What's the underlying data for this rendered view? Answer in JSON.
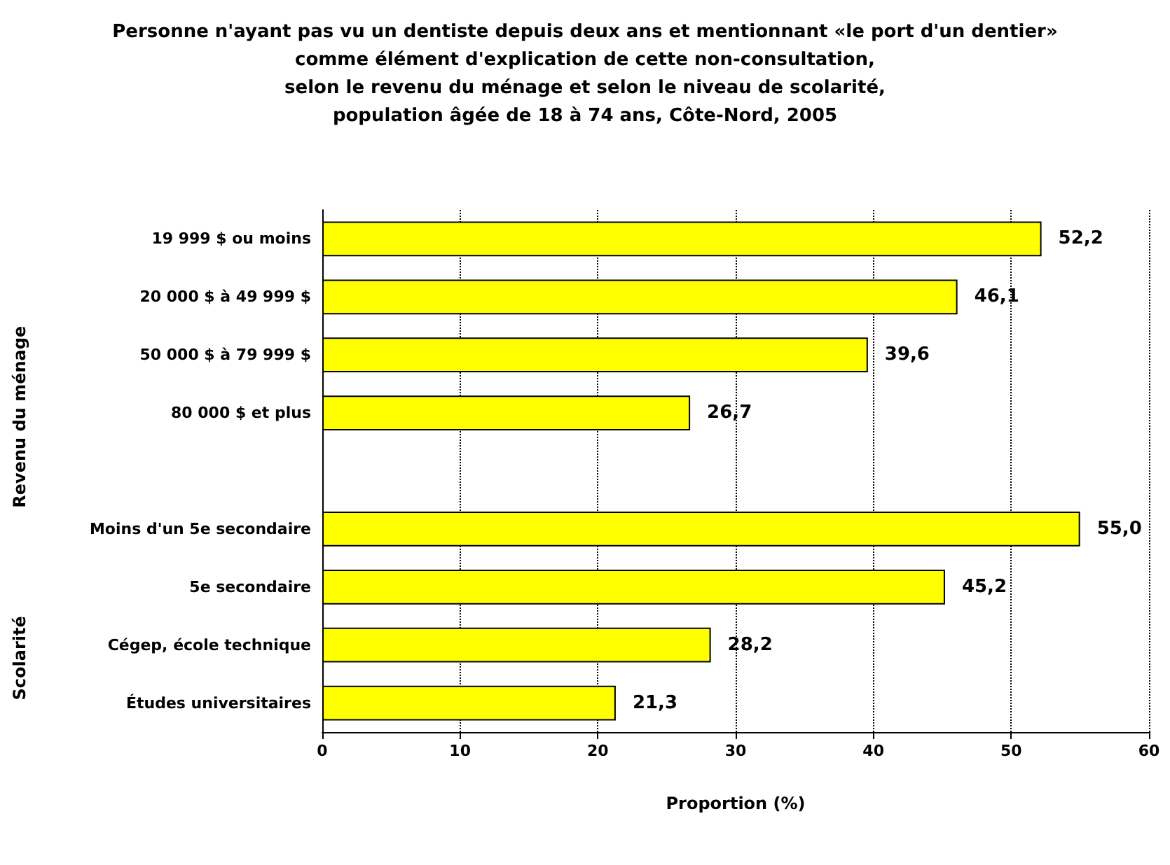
{
  "chart_data": {
    "type": "bar",
    "orientation": "horizontal",
    "title": "Personne n'ayant pas vu un dentiste depuis deux ans et mentionnant «le port d'un dentier»\ncomme élément d'explication de cette non-consultation,\nselon le revenu du ménage et selon le niveau de scolarité,\npopulation âgée de 18 à 74 ans, Côte-Nord, 2005",
    "xlabel": "Proportion (%)",
    "categories": [
      "19 999 $ ou moins",
      "20 000 $ à 49 999 $",
      "50 000 $ à 79 999 $",
      "80 000 $ et plus",
      null,
      "Moins d'un 5e secondaire",
      "5e secondaire",
      "Cégep, école technique",
      "Études universitaires"
    ],
    "values": [
      52.2,
      46.1,
      39.6,
      26.7,
      null,
      55.0,
      45.2,
      28.2,
      21.3
    ],
    "value_labels": [
      "52,2",
      "46,1",
      "39,6",
      "26,7",
      null,
      "55,0",
      "45,2",
      "28,2",
      "21,3"
    ],
    "color": "#ffff00",
    "xlim": [
      0,
      60
    ],
    "xticks": [
      0,
      10,
      20,
      30,
      40,
      50,
      60
    ],
    "grid": "x",
    "annotations": [
      "Revenu du ménage",
      "Scolarité"
    ]
  }
}
